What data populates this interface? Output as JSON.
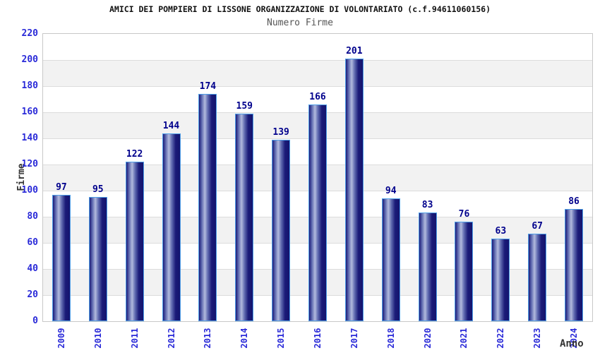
{
  "chart_data": {
    "type": "bar",
    "title": "AMICI DEI POMPIERI DI LISSONE ORGANIZZAZIONE DI VOLONTARIATO (c.f.94611060156)",
    "subtitle": "Numero Firme",
    "xlabel": "Anno",
    "ylabel": "Firme",
    "categories": [
      "2009",
      "2010",
      "2011",
      "2012",
      "2013",
      "2014",
      "2015",
      "2016",
      "2017",
      "2018",
      "2020",
      "2021",
      "2022",
      "2023",
      "2024"
    ],
    "values": [
      97,
      95,
      122,
      144,
      174,
      159,
      139,
      166,
      201,
      94,
      83,
      76,
      63,
      67,
      86
    ],
    "ylim": [
      0,
      220
    ],
    "ytick_step": 20,
    "grid": true,
    "band_fill": true,
    "legend": "none",
    "colors": {
      "bar_edge": "#4f9fe8",
      "bar_dark": "#1b1b78",
      "bar_mid": "#5f6ab0",
      "bar_light": "#b2badd",
      "bar_dark_right": "#14146e",
      "value_label": "#00008c",
      "tick_label": "#2a2ad8",
      "axis_title": "#333333",
      "band": "#f2f2f2",
      "grid_line": "#dcdcdc",
      "plot_border": "#c8c8c8",
      "title": "#111111",
      "subtitle": "#555555"
    }
  }
}
